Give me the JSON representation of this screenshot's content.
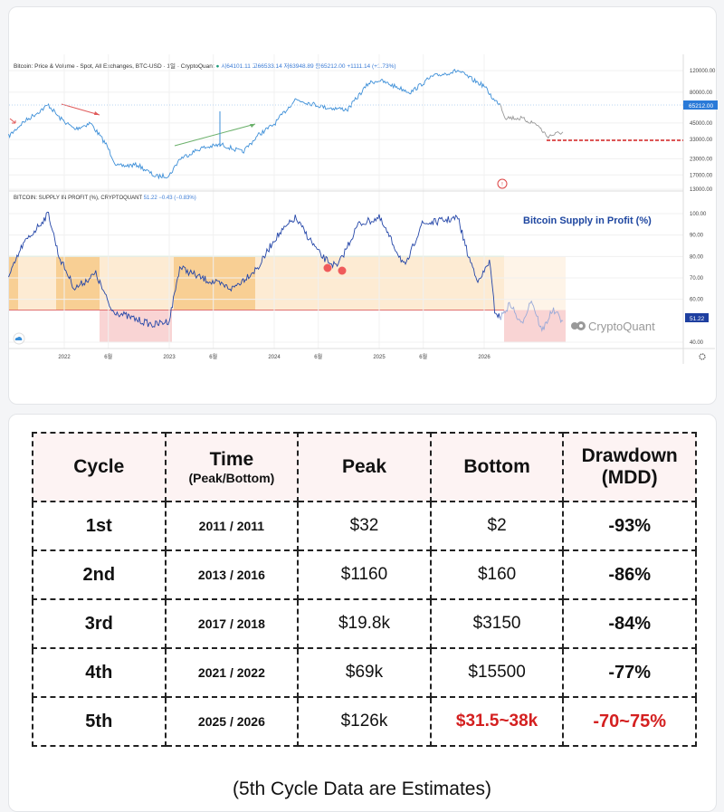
{
  "chart_header": {
    "title": "Bitcoin: Price & Volume - Spot, All Exchanges, BTC-USD · 1일 · CryptoQuant",
    "ohlc": "시64101.11 고66533.14 저63948.89 종65212.00 +1111.14 (+1.73%)",
    "supply_title": "BITCOIN: SUPPLY IN PROFIT (%), CRYPTOQUANT",
    "supply_values": "51.22 −0.43 (−0.83%)",
    "overlay_label": "Bitcoin Supply in Profit (%)",
    "watermark": "CryptoQuant",
    "price_badge": "65212.00",
    "supply_badge": "51.22"
  },
  "chart_data": [
    {
      "type": "line",
      "title": "Bitcoin: Price & Volume - Spot, All Exchanges, BTC-USD",
      "y_scale": "log",
      "y_ticks": [
        "120000.00",
        "80000.00",
        "45000.00",
        "33000.00",
        "23000.00",
        "17000.00",
        "13000.00"
      ],
      "y_tick_values": [
        120000,
        80000,
        45000,
        33000,
        23000,
        17000,
        13000
      ],
      "x_ticks": [
        "2022",
        "6월",
        "2023",
        "6월",
        "2024",
        "6월",
        "2025",
        "6월",
        "2026"
      ],
      "x_tick_values": [
        2022,
        2022.42,
        2023,
        2023.42,
        2024,
        2024.42,
        2025,
        2025.42,
        2026
      ],
      "series": [
        {
          "color": "#3d8fd8",
          "points": [
            [
              2021.47,
              35000
            ],
            [
              2021.6,
              45000
            ],
            [
              2021.85,
              63000
            ],
            [
              2021.95,
              50000
            ],
            [
              2022.1,
              40000
            ],
            [
              2022.25,
              45000
            ],
            [
              2022.4,
              30000
            ],
            [
              2022.5,
              20000
            ],
            [
              2022.7,
              20500
            ],
            [
              2022.87,
              16500
            ],
            [
              2023.0,
              16800
            ],
            [
              2023.1,
              23000
            ],
            [
              2023.3,
              28000
            ],
            [
              2023.5,
              30000
            ],
            [
              2023.7,
              26000
            ],
            [
              2023.85,
              36000
            ],
            [
              2024.0,
              44000
            ],
            [
              2024.2,
              70000
            ],
            [
              2024.5,
              60000
            ],
            [
              2024.7,
              58000
            ],
            [
              2024.9,
              95000
            ],
            [
              2025.0,
              100000
            ],
            [
              2025.3,
              80000
            ],
            [
              2025.5,
              107000
            ],
            [
              2025.75,
              120000
            ],
            [
              2025.9,
              100000
            ],
            [
              2026.0,
              90000
            ],
            [
              2026.1,
              68000
            ],
            [
              2026.15,
              65212
            ]
          ]
        },
        {
          "color": "#999999",
          "points": [
            [
              2026.15,
              65212
            ],
            [
              2026.2,
              50000
            ],
            [
              2026.35,
              49000
            ],
            [
              2026.5,
              44000
            ],
            [
              2026.6,
              35000
            ],
            [
              2026.75,
              38000
            ]
          ]
        }
      ],
      "annotations": {
        "target_line": 33000
      }
    },
    {
      "type": "line",
      "title": "Bitcoin Supply in Profit (%)",
      "y_ticks": [
        "100.00",
        "90.00",
        "80.00",
        "70.00",
        "60.00",
        "40.00"
      ],
      "y_tick_values": [
        100,
        90,
        80,
        70,
        60,
        40
      ],
      "bands": {
        "upper": 80,
        "lower": 55
      },
      "series": [
        {
          "color": "#2446a8",
          "points": [
            [
              2021.47,
              70
            ],
            [
              2021.6,
              85
            ],
            [
              2021.85,
              100
            ],
            [
              2021.95,
              80
            ],
            [
              2022.1,
              65
            ],
            [
              2022.3,
              72
            ],
            [
              2022.45,
              55
            ],
            [
              2022.6,
              52
            ],
            [
              2022.85,
              48
            ],
            [
              2023.0,
              50
            ],
            [
              2023.1,
              75
            ],
            [
              2023.3,
              70
            ],
            [
              2023.6,
              65
            ],
            [
              2023.85,
              75
            ],
            [
              2024.0,
              88
            ],
            [
              2024.2,
              98
            ],
            [
              2024.45,
              80
            ],
            [
              2024.6,
              75
            ],
            [
              2024.8,
              95
            ],
            [
              2025.0,
              98
            ],
            [
              2025.25,
              75
            ],
            [
              2025.4,
              95
            ],
            [
              2025.75,
              98
            ],
            [
              2025.85,
              80
            ],
            [
              2025.95,
              68
            ],
            [
              2026.05,
              78
            ],
            [
              2026.1,
              55
            ],
            [
              2026.15,
              51.22
            ]
          ]
        },
        {
          "color": "#9aaad8",
          "points": [
            [
              2026.15,
              51.22
            ],
            [
              2026.25,
              58
            ],
            [
              2026.35,
              48
            ],
            [
              2026.45,
              60
            ],
            [
              2026.55,
              45
            ],
            [
              2026.65,
              55
            ],
            [
              2026.75,
              50
            ]
          ]
        }
      ]
    }
  ],
  "table": {
    "headers": [
      "Cycle",
      "Time",
      "(Peak/Bottom)",
      "Peak",
      "Bottom",
      "Drawdown",
      "(MDD)"
    ],
    "rows": [
      [
        "1st",
        "2011 / 2011",
        "$32",
        "$2",
        "-93%"
      ],
      [
        "2nd",
        "2013 / 2016",
        "$1160",
        "$160",
        "-86%"
      ],
      [
        "3rd",
        "2017 / 2018",
        "$19.8k",
        "$3150",
        "-84%"
      ],
      [
        "4th",
        "2021 / 2022",
        "$69k",
        "$15500",
        "-77%"
      ],
      [
        "5th",
        "2025 / 2026",
        "$126k",
        "$31.5~38k",
        "-70~75%"
      ]
    ],
    "note": "(5th Cycle Data are Estimates)"
  },
  "colors": {
    "price": "#3d8fd8",
    "supply": "#2446a8",
    "estimate": "#d42020",
    "band_light": "#fdebd3",
    "band_dark": "#f8cf94",
    "band_pink": "#f9d4d4"
  }
}
